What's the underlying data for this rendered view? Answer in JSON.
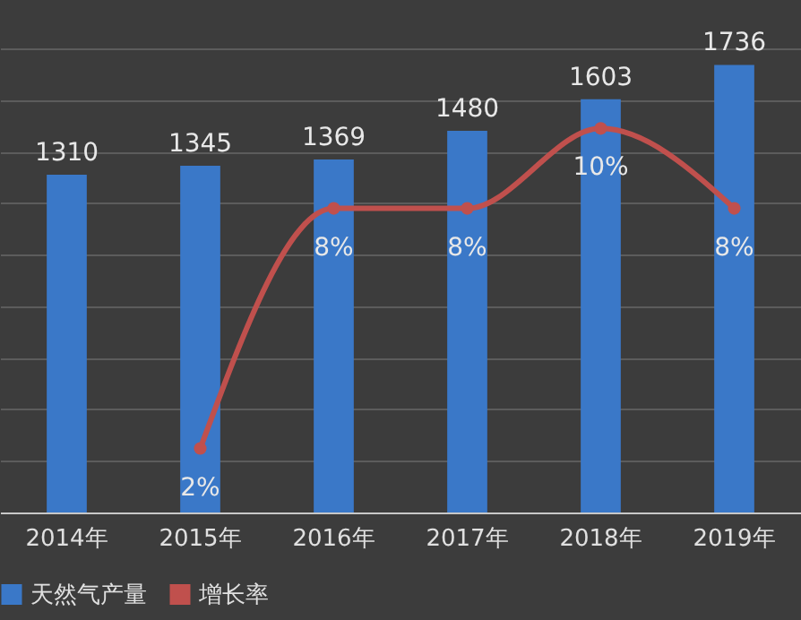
{
  "chart_data": {
    "type": "bar",
    "categories": [
      "2014年",
      "2015年",
      "2016年",
      "2017年",
      "2018年",
      "2019年"
    ],
    "series": [
      {
        "name": "天然气产量",
        "color": "#3a78c8",
        "values": [
          1310,
          1345,
          1369,
          1480,
          1603,
          1736
        ]
      },
      {
        "name": "增长率",
        "type": "line",
        "axis": "y2",
        "color": "#c0504d",
        "marker": "circle",
        "values": [
          null,
          2,
          8,
          8,
          10,
          8
        ],
        "value_labels": [
          null,
          "2%",
          "8%",
          "8%",
          "10%",
          "8%"
        ]
      }
    ],
    "ylim": [
      0,
      1800
    ],
    "yticks": [
      {
        "value": 0,
        "label": null
      },
      {
        "value": 200,
        "label": null
      },
      {
        "value": 400,
        "label": null
      },
      {
        "value": 600,
        "label": null
      },
      {
        "value": 800,
        "label": null
      },
      {
        "value": 1000,
        "label": null
      },
      {
        "value": 1200,
        "label": null
      },
      {
        "value": 1400,
        "label": null
      },
      {
        "value": 1600,
        "label": null
      },
      {
        "value": 1800,
        "label": null
      }
    ],
    "y2lim": [
      0.4,
      12
    ],
    "grid": "y",
    "legend": "bottom",
    "tick_labels": "x",
    "data_labels": true
  }
}
